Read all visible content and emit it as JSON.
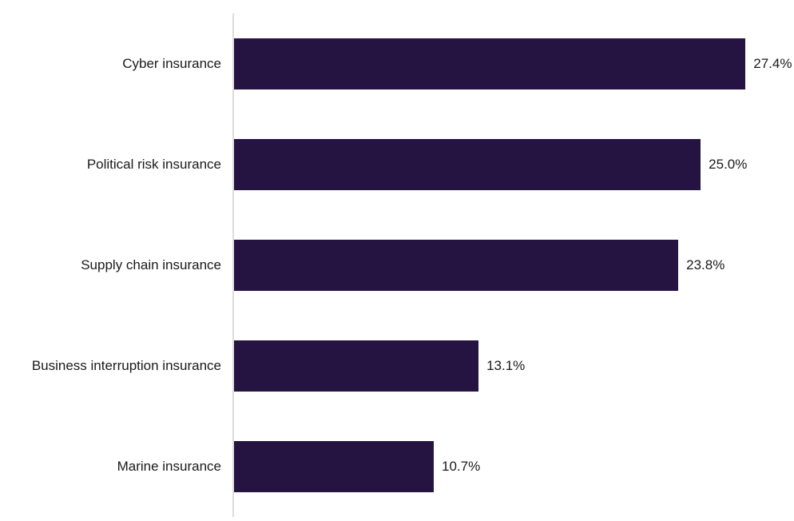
{
  "chart_data": {
    "type": "bar",
    "orientation": "horizontal",
    "title": "",
    "xlabel": "",
    "ylabel": "",
    "categories": [
      "Cyber insurance",
      "Political risk insurance",
      "Supply chain insurance",
      "Business interruption insurance",
      "Marine insurance"
    ],
    "values": [
      27.4,
      25.0,
      23.8,
      13.1,
      10.7
    ],
    "value_labels": [
      "27.4%",
      "25.0%",
      "23.8%",
      "13.1%",
      "10.7%"
    ],
    "xlim": [
      0,
      30
    ],
    "grid": false,
    "legend": false,
    "bar_color": "#251342",
    "axis_line_color": "#dcdcdc",
    "text_color": "#1a1a1a"
  }
}
